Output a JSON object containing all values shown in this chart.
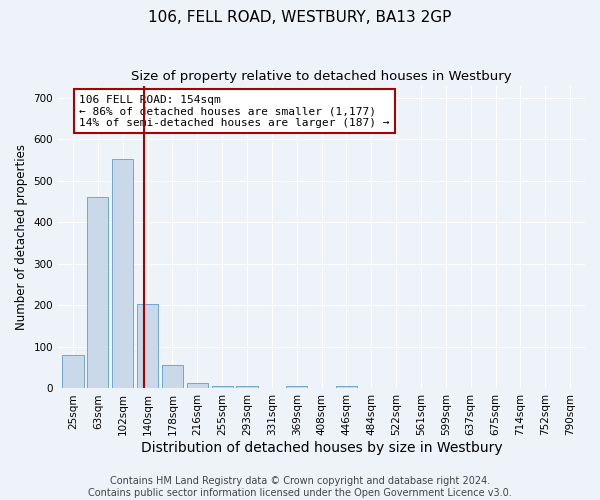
{
  "title": "106, FELL ROAD, WESTBURY, BA13 2GP",
  "subtitle": "Size of property relative to detached houses in Westbury",
  "xlabel": "Distribution of detached houses by size in Westbury",
  "ylabel": "Number of detached properties",
  "bar_labels": [
    "25sqm",
    "63sqm",
    "102sqm",
    "140sqm",
    "178sqm",
    "216sqm",
    "255sqm",
    "293sqm",
    "331sqm",
    "369sqm",
    "408sqm",
    "446sqm",
    "484sqm",
    "522sqm",
    "561sqm",
    "599sqm",
    "637sqm",
    "675sqm",
    "714sqm",
    "752sqm",
    "790sqm"
  ],
  "bar_values": [
    80,
    462,
    553,
    204,
    57,
    14,
    6,
    5,
    0,
    5,
    0,
    5,
    0,
    0,
    0,
    0,
    0,
    0,
    0,
    0,
    0
  ],
  "bar_color": "#c9d9ea",
  "bar_edge_color": "#6fa8d0",
  "red_line_x": 2.85,
  "property_line_label": "106 FELL ROAD: 154sqm",
  "annotation_line1": "← 86% of detached houses are smaller (1,177)",
  "annotation_line2": "14% of semi-detached houses are larger (187) →",
  "annotation_box_color": "#ffffff",
  "annotation_box_edge": "#aa0000",
  "red_line_color": "#aa0000",
  "ylim": [
    0,
    730
  ],
  "yticks": [
    0,
    100,
    200,
    300,
    400,
    500,
    600,
    700
  ],
  "footer1": "Contains HM Land Registry data © Crown copyright and database right 2024.",
  "footer2": "Contains public sector information licensed under the Open Government Licence v3.0.",
  "bg_color": "#eef2f9",
  "grid_color": "#ffffff",
  "title_fontsize": 11,
  "subtitle_fontsize": 9.5,
  "xlabel_fontsize": 10,
  "ylabel_fontsize": 8.5,
  "tick_fontsize": 7.5,
  "footer_fontsize": 7,
  "ann_fontsize": 8
}
